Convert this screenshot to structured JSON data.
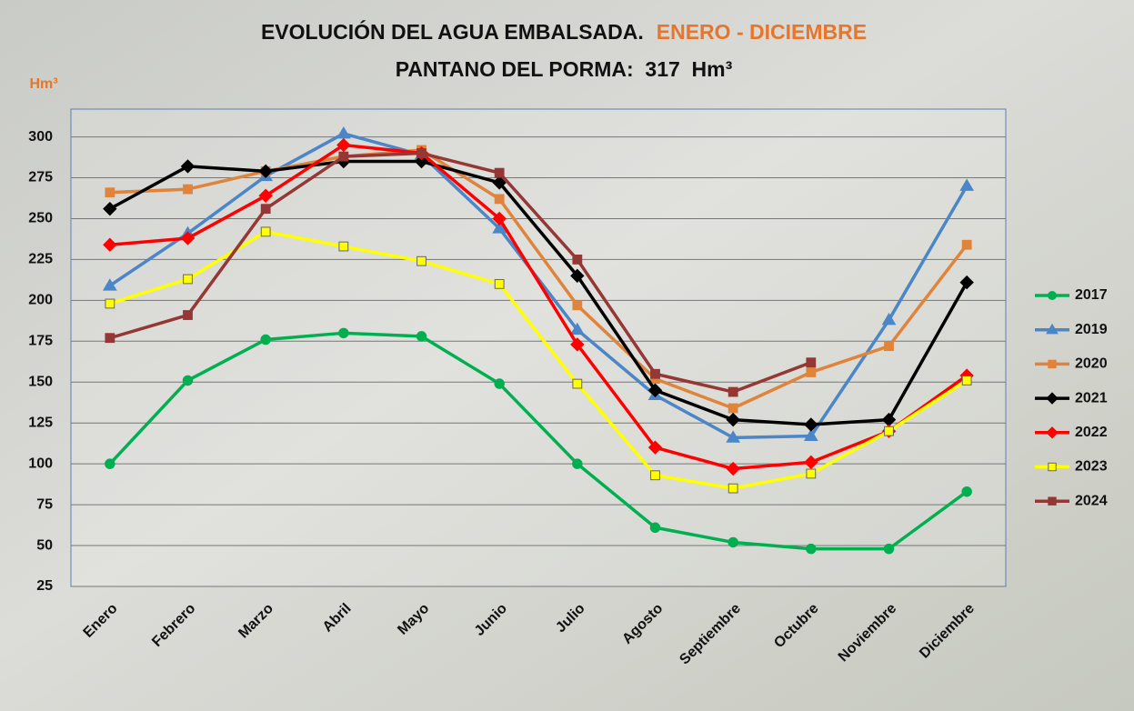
{
  "chart_data": {
    "type": "line",
    "title": "EVOLUCIÓN DEL AGUA EMBALSADA.",
    "title_highlight": "ENERO - DICIEMBRE",
    "subtitle": "PANTANO DEL PORMA:  317  Hm³",
    "y_label": "Hm³",
    "categories": [
      "Enero",
      "Febrero",
      "Marzo",
      "Abril",
      "Mayo",
      "Junio",
      "Julio",
      "Agosto",
      "Septiembre",
      "Octubre",
      "Noviembre",
      "Diciembre"
    ],
    "series": [
      {
        "name": "2017",
        "color": "#00b050",
        "marker": "circle",
        "values": [
          100,
          151,
          176,
          180,
          178,
          149,
          100,
          61,
          52,
          48,
          48,
          83
        ]
      },
      {
        "name": "2019",
        "color": "#4a86c8",
        "marker": "triangle",
        "values": [
          209,
          241,
          276,
          302,
          289,
          244,
          182,
          142,
          116,
          117,
          188,
          270
        ]
      },
      {
        "name": "2020",
        "color": "#e0843c",
        "marker": "square",
        "values": [
          266,
          268,
          279,
          288,
          292,
          262,
          197,
          152,
          134,
          156,
          172,
          234
        ]
      },
      {
        "name": "2021",
        "color": "#000000",
        "marker": "diamond",
        "values": [
          256,
          282,
          279,
          285,
          285,
          272,
          215,
          145,
          127,
          124,
          127,
          211
        ]
      },
      {
        "name": "2022",
        "color": "#ff0000",
        "marker": "diamond",
        "values": [
          234,
          238,
          264,
          295,
          290,
          250,
          173,
          110,
          97,
          101,
          120,
          154
        ]
      },
      {
        "name": "2023",
        "color": "#ffff00",
        "marker": "square",
        "values": [
          198,
          213,
          242,
          233,
          224,
          210,
          149,
          93,
          85,
          94,
          120,
          151
        ]
      },
      {
        "name": "2024",
        "color": "#953735",
        "marker": "square",
        "values": [
          177,
          191,
          256,
          288,
          290,
          278,
          225,
          155,
          144,
          162,
          null,
          null
        ]
      }
    ],
    "ylim": [
      25,
      317
    ],
    "yticks": [
      25,
      50,
      75,
      100,
      125,
      150,
      175,
      200,
      225,
      250,
      275,
      300
    ],
    "grid": true,
    "legend": "right"
  }
}
